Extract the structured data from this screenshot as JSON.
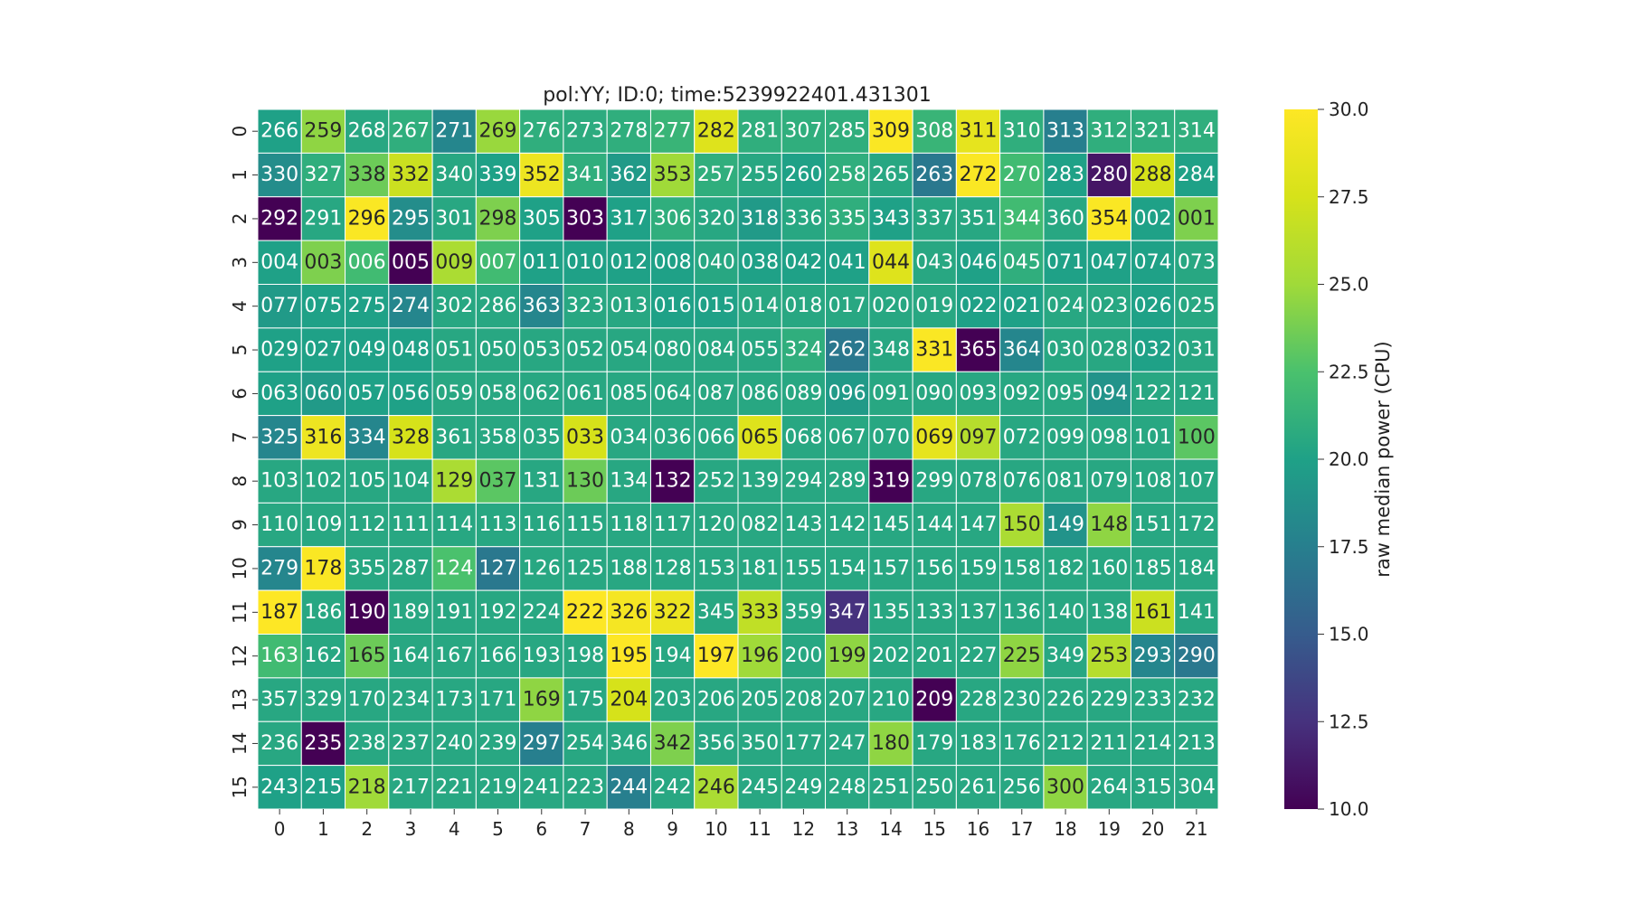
{
  "chart_data": {
    "type": "heatmap",
    "title": "pol:YY; ID:0; time:5239922401.431301",
    "xlabel": "",
    "ylabel": "",
    "x_ticks": [
      "0",
      "1",
      "2",
      "3",
      "4",
      "5",
      "6",
      "7",
      "8",
      "9",
      "10",
      "11",
      "12",
      "13",
      "14",
      "15",
      "16",
      "17",
      "18",
      "19",
      "20",
      "21"
    ],
    "y_ticks": [
      "0",
      "1",
      "2",
      "3",
      "4",
      "5",
      "6",
      "7",
      "8",
      "9",
      "10",
      "11",
      "12",
      "13",
      "14",
      "15"
    ],
    "colorbar": {
      "label": "raw median power (CPU)",
      "range": [
        10.0,
        30.0
      ],
      "ticks": [
        "10.0",
        "12.5",
        "15.0",
        "17.5",
        "20.0",
        "22.5",
        "25.0",
        "27.5",
        "30.0"
      ],
      "colormap": "viridis"
    },
    "cell_labels": [
      [
        "266",
        "259",
        "268",
        "267",
        "271",
        "269",
        "276",
        "273",
        "278",
        "277",
        "282",
        "281",
        "307",
        "285",
        "309",
        "308",
        "311",
        "310",
        "313",
        "312",
        "321",
        "314"
      ],
      [
        "330",
        "327",
        "338",
        "332",
        "340",
        "339",
        "352",
        "341",
        "362",
        "353",
        "257",
        "255",
        "260",
        "258",
        "265",
        "263",
        "272",
        "270",
        "283",
        "280",
        "288",
        "284"
      ],
      [
        "292",
        "291",
        "296",
        "295",
        "301",
        "298",
        "305",
        "303",
        "317",
        "306",
        "320",
        "318",
        "336",
        "335",
        "343",
        "337",
        "351",
        "344",
        "360",
        "354",
        "002",
        "001"
      ],
      [
        "004",
        "003",
        "006",
        "005",
        "009",
        "007",
        "011",
        "010",
        "012",
        "008",
        "040",
        "038",
        "042",
        "041",
        "044",
        "043",
        "046",
        "045",
        "071",
        "047",
        "074",
        "073"
      ],
      [
        "077",
        "075",
        "275",
        "274",
        "302",
        "286",
        "363",
        "323",
        "013",
        "016",
        "015",
        "014",
        "018",
        "017",
        "020",
        "019",
        "022",
        "021",
        "024",
        "023",
        "026",
        "025"
      ],
      [
        "029",
        "027",
        "049",
        "048",
        "051",
        "050",
        "053",
        "052",
        "054",
        "080",
        "084",
        "055",
        "324",
        "262",
        "348",
        "331",
        "365",
        "364",
        "030",
        "028",
        "032",
        "031"
      ],
      [
        "063",
        "060",
        "057",
        "056",
        "059",
        "058",
        "062",
        "061",
        "085",
        "064",
        "087",
        "086",
        "089",
        "096",
        "091",
        "090",
        "093",
        "092",
        "095",
        "094",
        "122",
        "121"
      ],
      [
        "325",
        "316",
        "334",
        "328",
        "361",
        "358",
        "035",
        "033",
        "034",
        "036",
        "066",
        "065",
        "068",
        "067",
        "070",
        "069",
        "097",
        "072",
        "099",
        "098",
        "101",
        "100"
      ],
      [
        "103",
        "102",
        "105",
        "104",
        "129",
        "037",
        "131",
        "130",
        "134",
        "132",
        "252",
        "139",
        "294",
        "289",
        "319",
        "299",
        "078",
        "076",
        "081",
        "079",
        "108",
        "107"
      ],
      [
        "110",
        "109",
        "112",
        "111",
        "114",
        "113",
        "116",
        "115",
        "118",
        "117",
        "120",
        "082",
        "143",
        "142",
        "145",
        "144",
        "147",
        "150",
        "149",
        "148",
        "151",
        "172"
      ],
      [
        "279",
        "178",
        "355",
        "287",
        "124",
        "127",
        "126",
        "125",
        "188",
        "128",
        "153",
        "181",
        "155",
        "154",
        "157",
        "156",
        "159",
        "158",
        "182",
        "160",
        "185",
        "184"
      ],
      [
        "187",
        "186",
        "190",
        "189",
        "191",
        "192",
        "224",
        "222",
        "326",
        "322",
        "345",
        "333",
        "359",
        "347",
        "135",
        "133",
        "137",
        "136",
        "140",
        "138",
        "161",
        "141"
      ],
      [
        "163",
        "162",
        "165",
        "164",
        "167",
        "166",
        "193",
        "198",
        "195",
        "194",
        "197",
        "196",
        "200",
        "199",
        "202",
        "201",
        "227",
        "225",
        "349",
        "253",
        "293",
        "290"
      ],
      [
        "357",
        "329",
        "170",
        "234",
        "173",
        "171",
        "169",
        "175",
        "204",
        "203",
        "206",
        "205",
        "208",
        "207",
        "210",
        "209",
        "228",
        "230",
        "226",
        "229",
        "233",
        "232"
      ],
      [
        "236",
        "235",
        "238",
        "237",
        "240",
        "239",
        "297",
        "254",
        "346",
        "342",
        "356",
        "350",
        "177",
        "247",
        "180",
        "179",
        "183",
        "176",
        "212",
        "211",
        "214",
        "213"
      ],
      [
        "243",
        "215",
        "218",
        "217",
        "221",
        "219",
        "241",
        "223",
        "244",
        "242",
        "246",
        "245",
        "249",
        "248",
        "251",
        "250",
        "261",
        "256",
        "300",
        "264",
        "315",
        "304"
      ]
    ],
    "values": [
      [
        20.0,
        24.5,
        20.5,
        21.0,
        18.0,
        24.8,
        21.0,
        20.8,
        21.0,
        21.5,
        28.0,
        21.0,
        21.0,
        21.0,
        29.8,
        21.5,
        28.5,
        21.0,
        17.5,
        21.0,
        21.0,
        21.0
      ],
      [
        18.5,
        21.0,
        23.5,
        27.0,
        20.5,
        20.0,
        29.0,
        21.0,
        19.5,
        25.0,
        21.0,
        20.5,
        20.0,
        21.0,
        20.5,
        17.0,
        29.8,
        22.0,
        20.0,
        11.0,
        27.5,
        20.0
      ],
      [
        10.0,
        20.5,
        29.8,
        18.5,
        20.5,
        24.0,
        20.0,
        10.0,
        20.0,
        21.0,
        20.5,
        19.5,
        20.5,
        21.0,
        20.0,
        20.5,
        20.5,
        22.0,
        20.5,
        29.8,
        20.0,
        24.0
      ],
      [
        20.0,
        24.0,
        22.0,
        10.0,
        25.5,
        22.0,
        20.0,
        20.0,
        20.0,
        20.0,
        20.5,
        20.0,
        20.0,
        20.0,
        28.0,
        20.5,
        20.0,
        21.0,
        20.0,
        20.0,
        20.0,
        20.5
      ],
      [
        19.5,
        20.0,
        20.0,
        18.0,
        20.5,
        20.5,
        18.0,
        20.5,
        20.5,
        20.0,
        20.0,
        20.5,
        20.5,
        20.5,
        20.5,
        20.5,
        20.0,
        20.0,
        20.5,
        20.5,
        20.0,
        20.5
      ],
      [
        20.0,
        20.0,
        20.0,
        20.0,
        20.5,
        20.5,
        20.5,
        20.5,
        20.5,
        20.5,
        20.5,
        20.5,
        21.0,
        17.0,
        20.5,
        29.8,
        10.0,
        18.0,
        20.5,
        20.5,
        20.0,
        20.5
      ],
      [
        20.0,
        19.5,
        20.0,
        20.0,
        20.5,
        20.5,
        20.5,
        20.5,
        20.5,
        20.5,
        20.5,
        20.5,
        20.5,
        19.5,
        20.5,
        20.5,
        20.5,
        20.5,
        20.5,
        19.0,
        20.5,
        20.5
      ],
      [
        18.0,
        29.0,
        18.0,
        27.5,
        20.5,
        20.5,
        20.5,
        27.5,
        20.5,
        20.5,
        20.5,
        28.0,
        20.5,
        20.5,
        20.5,
        28.5,
        26.0,
        20.5,
        20.5,
        20.5,
        20.5,
        23.0
      ],
      [
        20.5,
        20.5,
        20.5,
        20.5,
        25.5,
        23.0,
        20.5,
        23.5,
        20.5,
        10.0,
        20.5,
        20.5,
        20.5,
        20.5,
        10.0,
        20.5,
        20.5,
        20.5,
        20.5,
        20.5,
        20.5,
        20.5
      ],
      [
        20.5,
        20.5,
        20.5,
        20.5,
        20.5,
        20.5,
        20.5,
        20.5,
        20.5,
        20.5,
        20.5,
        20.5,
        20.5,
        20.5,
        20.5,
        20.5,
        20.5,
        25.5,
        19.0,
        24.5,
        20.5,
        20.5
      ],
      [
        18.0,
        29.8,
        20.5,
        20.5,
        22.5,
        17.0,
        20.5,
        20.5,
        20.5,
        20.5,
        20.5,
        20.5,
        20.5,
        20.5,
        20.5,
        20.5,
        20.5,
        20.5,
        20.5,
        20.5,
        20.5,
        20.5
      ],
      [
        30.0,
        20.5,
        10.0,
        20.5,
        20.5,
        20.5,
        20.5,
        30.0,
        29.5,
        29.0,
        20.5,
        26.5,
        20.5,
        12.5,
        20.5,
        20.5,
        20.5,
        20.5,
        20.5,
        20.5,
        27.0,
        20.5
      ],
      [
        22.0,
        20.5,
        23.5,
        20.5,
        20.5,
        20.5,
        20.5,
        20.5,
        30.0,
        20.5,
        30.0,
        25.0,
        20.5,
        24.5,
        20.5,
        20.5,
        20.5,
        24.5,
        20.5,
        26.0,
        18.0,
        17.0
      ],
      [
        20.5,
        20.5,
        20.5,
        20.5,
        20.5,
        20.5,
        24.5,
        20.5,
        27.5,
        20.5,
        20.5,
        20.5,
        20.5,
        20.5,
        20.5,
        10.0,
        20.5,
        20.5,
        20.5,
        20.5,
        20.5,
        20.5
      ],
      [
        20.5,
        10.0,
        20.5,
        20.5,
        20.5,
        20.5,
        17.5,
        20.5,
        20.5,
        24.0,
        20.5,
        20.5,
        20.5,
        20.5,
        24.5,
        20.5,
        20.5,
        20.5,
        20.5,
        20.5,
        20.5,
        20.5
      ],
      [
        20.0,
        20.0,
        25.0,
        20.5,
        20.5,
        20.5,
        20.5,
        20.5,
        17.5,
        20.5,
        25.5,
        20.5,
        20.5,
        20.5,
        20.5,
        20.5,
        20.5,
        20.5,
        24.5,
        20.5,
        20.5,
        20.5
      ]
    ]
  }
}
